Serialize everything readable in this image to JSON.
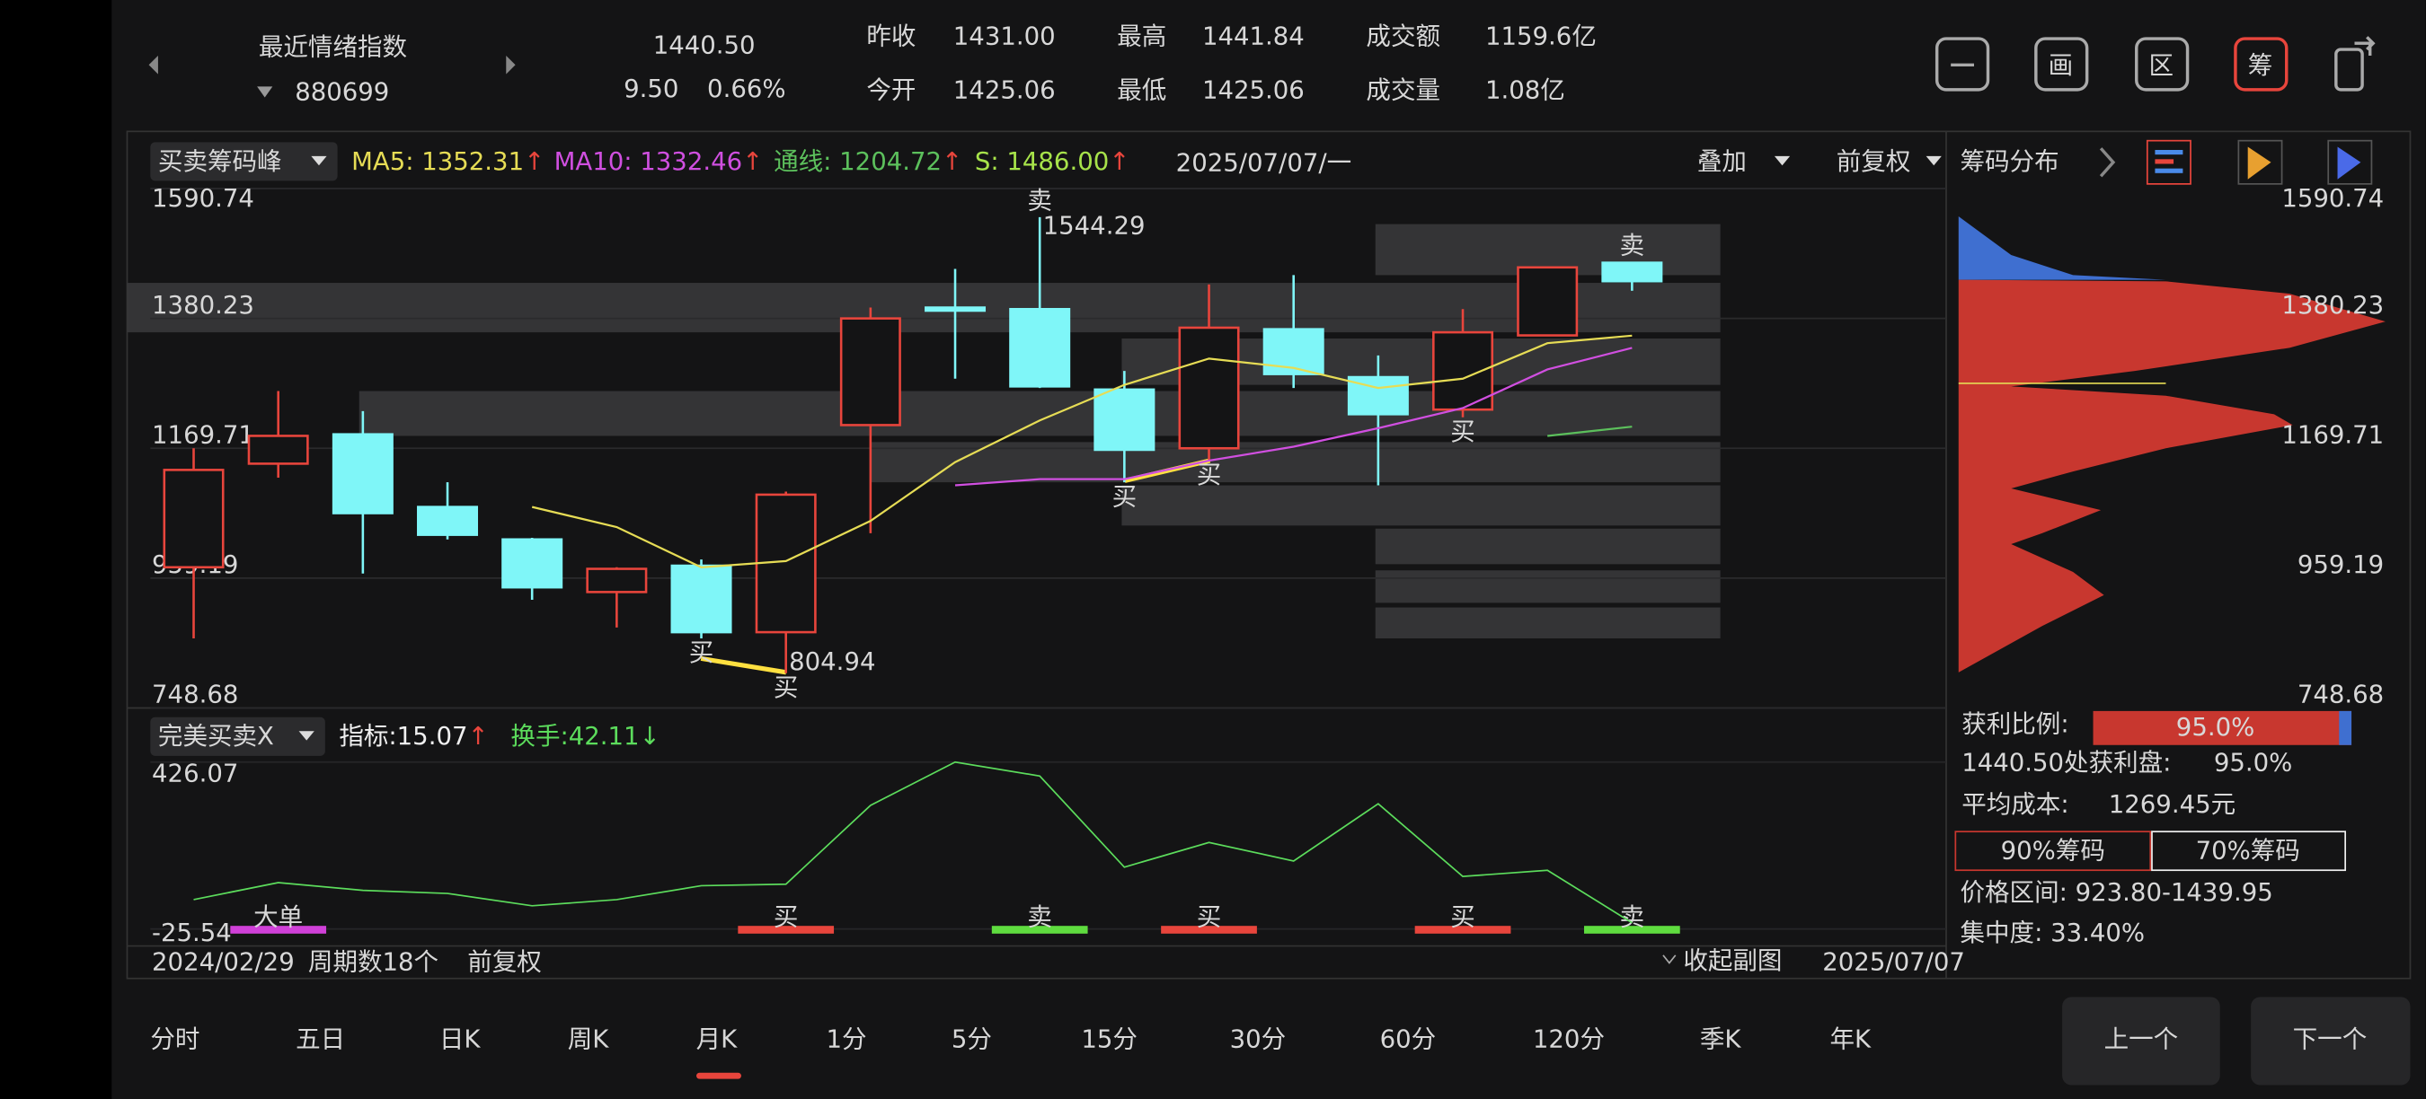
{
  "header": {
    "name": "最近情绪指数",
    "code": "880699",
    "price": "1440.50",
    "change": "9.50",
    "change_pct": "0.66%",
    "stats": [
      {
        "label": "昨收",
        "value": "1431.00",
        "color": "#f0f0f0"
      },
      {
        "label": "今开",
        "value": "1425.06",
        "color": "#3dbd55"
      },
      {
        "label": "最高",
        "value": "1441.84",
        "color": "#e8453c"
      },
      {
        "label": "最低",
        "value": "1425.06",
        "color": "#3dbd55"
      },
      {
        "label": "成交额",
        "value": "1159.6亿",
        "color": "#f0f0f0"
      },
      {
        "label": "成交量",
        "value": "1.08亿",
        "color": "#f0f0f0"
      }
    ],
    "icons": [
      "画",
      "区",
      "筹"
    ]
  },
  "toolbar": {
    "indicator": "买卖筹码峰",
    "legend": [
      {
        "text": "MA5: 1352.31",
        "arrow": "↑",
        "color": "#e6dc55",
        "arrow_color": "#e8453c"
      },
      {
        "text": "MA10: 1332.46",
        "arrow": "↑",
        "color": "#d04fe0",
        "arrow_color": "#e8453c"
      },
      {
        "text": "通线: 1204.72",
        "arrow": "↑",
        "color": "#5cc05c",
        "arrow_color": "#e8453c"
      },
      {
        "text": "S: 1486.00",
        "arrow": "↑",
        "color": "#a7e34a",
        "arrow_color": "#e8453c"
      }
    ],
    "date": "2025/07/07/一",
    "overlay": "叠加",
    "adjust": "前复权",
    "chip_title": "筹码分布"
  },
  "chart_data": [
    {
      "type": "candlestick",
      "ylim": [
        748.68,
        1590.74
      ],
      "yticks": [
        1590.74,
        1380.23,
        1169.71,
        959.19,
        748.68
      ],
      "grid": true,
      "up_color": "#e8453c",
      "down_color": "#7ff6f8",
      "open": [
        976.8,
        1144.7,
        1192.3,
        1074.5,
        1021.9,
        936.6,
        979.3,
        871.5,
        1207.3,
        1397.8,
        1395.3,
        1264.9,
        1169.7,
        1362.7,
        1285.0,
        1232.4,
        1352.7,
        1470.5
      ],
      "high": [
        1169.7,
        1262.5,
        1229.9,
        1114.6,
        1024.4,
        976.8,
        989.3,
        1099.5,
        1397.8,
        1460.4,
        1544.29,
        1295.0,
        1435.4,
        1450.4,
        1320.1,
        1395.3,
        1463.0,
        1472.0
      ],
      "low": [
        861.5,
        1122.1,
        966.7,
        1021.9,
        924.1,
        879.0,
        861.5,
        804.94,
        1031.9,
        1282.5,
        1267.5,
        1114.6,
        1149.7,
        1267.5,
        1109.6,
        1219.9,
        1352.7,
        1425.06
      ],
      "close": [
        1134.6,
        1189.8,
        1064.5,
        1029.4,
        944.2,
        974.2,
        871.5,
        1094.5,
        1380.2,
        1392.8,
        1270.0,
        1167.2,
        1365.2,
        1290.0,
        1224.9,
        1357.7,
        1463.0,
        1440.5
      ],
      "lines": [
        {
          "color": "#e6dc55",
          "values": [
            null,
            null,
            null,
            null,
            1074.5,
            1041.9,
            976.7,
            986.8,
            1051.9,
            1147.2,
            1214.8,
            1272.5,
            1315.1,
            1300.0,
            1267.4,
            1282.5,
            1340.1,
            1352.31
          ]
        },
        {
          "color": "#d04fe0",
          "values": [
            null,
            null,
            null,
            null,
            null,
            null,
            null,
            null,
            null,
            1109.6,
            1119.6,
            1119.6,
            1149.7,
            1172.2,
            1202.3,
            1234.9,
            1297.5,
            1332.46
          ]
        },
        {
          "color": "#5cc05c",
          "values": [
            null,
            null,
            null,
            null,
            null,
            null,
            null,
            null,
            null,
            null,
            null,
            null,
            null,
            null,
            null,
            null,
            1189.7,
            1204.72
          ]
        }
      ],
      "buy_signals": [
        null,
        null,
        null,
        null,
        null,
        null,
        "买",
        "买",
        null,
        null,
        null,
        "买",
        "买",
        null,
        null,
        "买",
        null,
        null
      ],
      "sell_signals": [
        null,
        null,
        null,
        null,
        null,
        null,
        null,
        null,
        null,
        null,
        "卖",
        null,
        null,
        null,
        null,
        null,
        null,
        "卖"
      ],
      "buy_color": "#e8453c",
      "sell_color": "#6fe36f"
    },
    {
      "type": "line",
      "ylim": [
        -25.54,
        426.07
      ],
      "yticks": [
        426.07,
        -25.54
      ],
      "color": "#5cdc5c",
      "values": [
        53.9,
        99.9,
        79.0,
        70.6,
        37.2,
        53.9,
        91.5,
        95.7,
        308.9,
        425.9,
        388.3,
        141.7,
        208.6,
        158.4,
        313.1,
        116.6,
        133.3,
        -8.8
      ],
      "signals": [
        null,
        {
          "label": "大单",
          "color": "#d040d8",
          "text_color": "#e050e8"
        },
        null,
        null,
        null,
        null,
        null,
        {
          "label": "买",
          "color": "#e8453c",
          "text_color": "#ffd84a"
        },
        null,
        null,
        {
          "label": "卖",
          "color": "#5fdc3f",
          "text_color": "#e8e060"
        },
        null,
        {
          "label": "买",
          "color": "#e8453c",
          "text_color": "#ffd84a"
        },
        null,
        null,
        {
          "label": "买",
          "color": "#e8453c",
          "text_color": "#ffd84a"
        },
        null,
        {
          "label": "卖",
          "color": "#5fdc3f",
          "text_color": "#e8e060"
        }
      ]
    }
  ],
  "sub_toolbar": {
    "indicator": "完美买卖X",
    "legend": [
      {
        "text": "指标:15.07",
        "arrow": "↑",
        "color": "#f0f0f0",
        "arrow_color": "#e8453c"
      },
      {
        "text": "换手:42.11",
        "arrow": "↓",
        "color": "#5cdc5c",
        "arrow_color": "#5cdc5c"
      }
    ]
  },
  "footer": {
    "start_date": "2024/02/29",
    "periods": "周期数18个",
    "adjust": "前复权",
    "collapse": "收起副图",
    "end_date": "2025/07/07"
  },
  "chip_info": {
    "profit_label": "获利比例:",
    "profit_ratio": "95.0%",
    "profit_at_label": "1440.50处获利盘:",
    "profit_at": "95.0%",
    "avg_cost_label": "平均成本:",
    "avg_cost": "1269.45元",
    "range_90": "90%筹码",
    "range_70": "70%筹码",
    "price_range": "价格区间: 923.80-1439.95",
    "concentration": "集中度: 33.40%"
  },
  "tabs": [
    "分时",
    "五日",
    "日K",
    "周K",
    "月K",
    "1分",
    "5分",
    "15分",
    "30分",
    "60分",
    "120分",
    "季K",
    "年K"
  ],
  "active_tab": 4,
  "buttons": [
    "上一个",
    "下一个"
  ]
}
